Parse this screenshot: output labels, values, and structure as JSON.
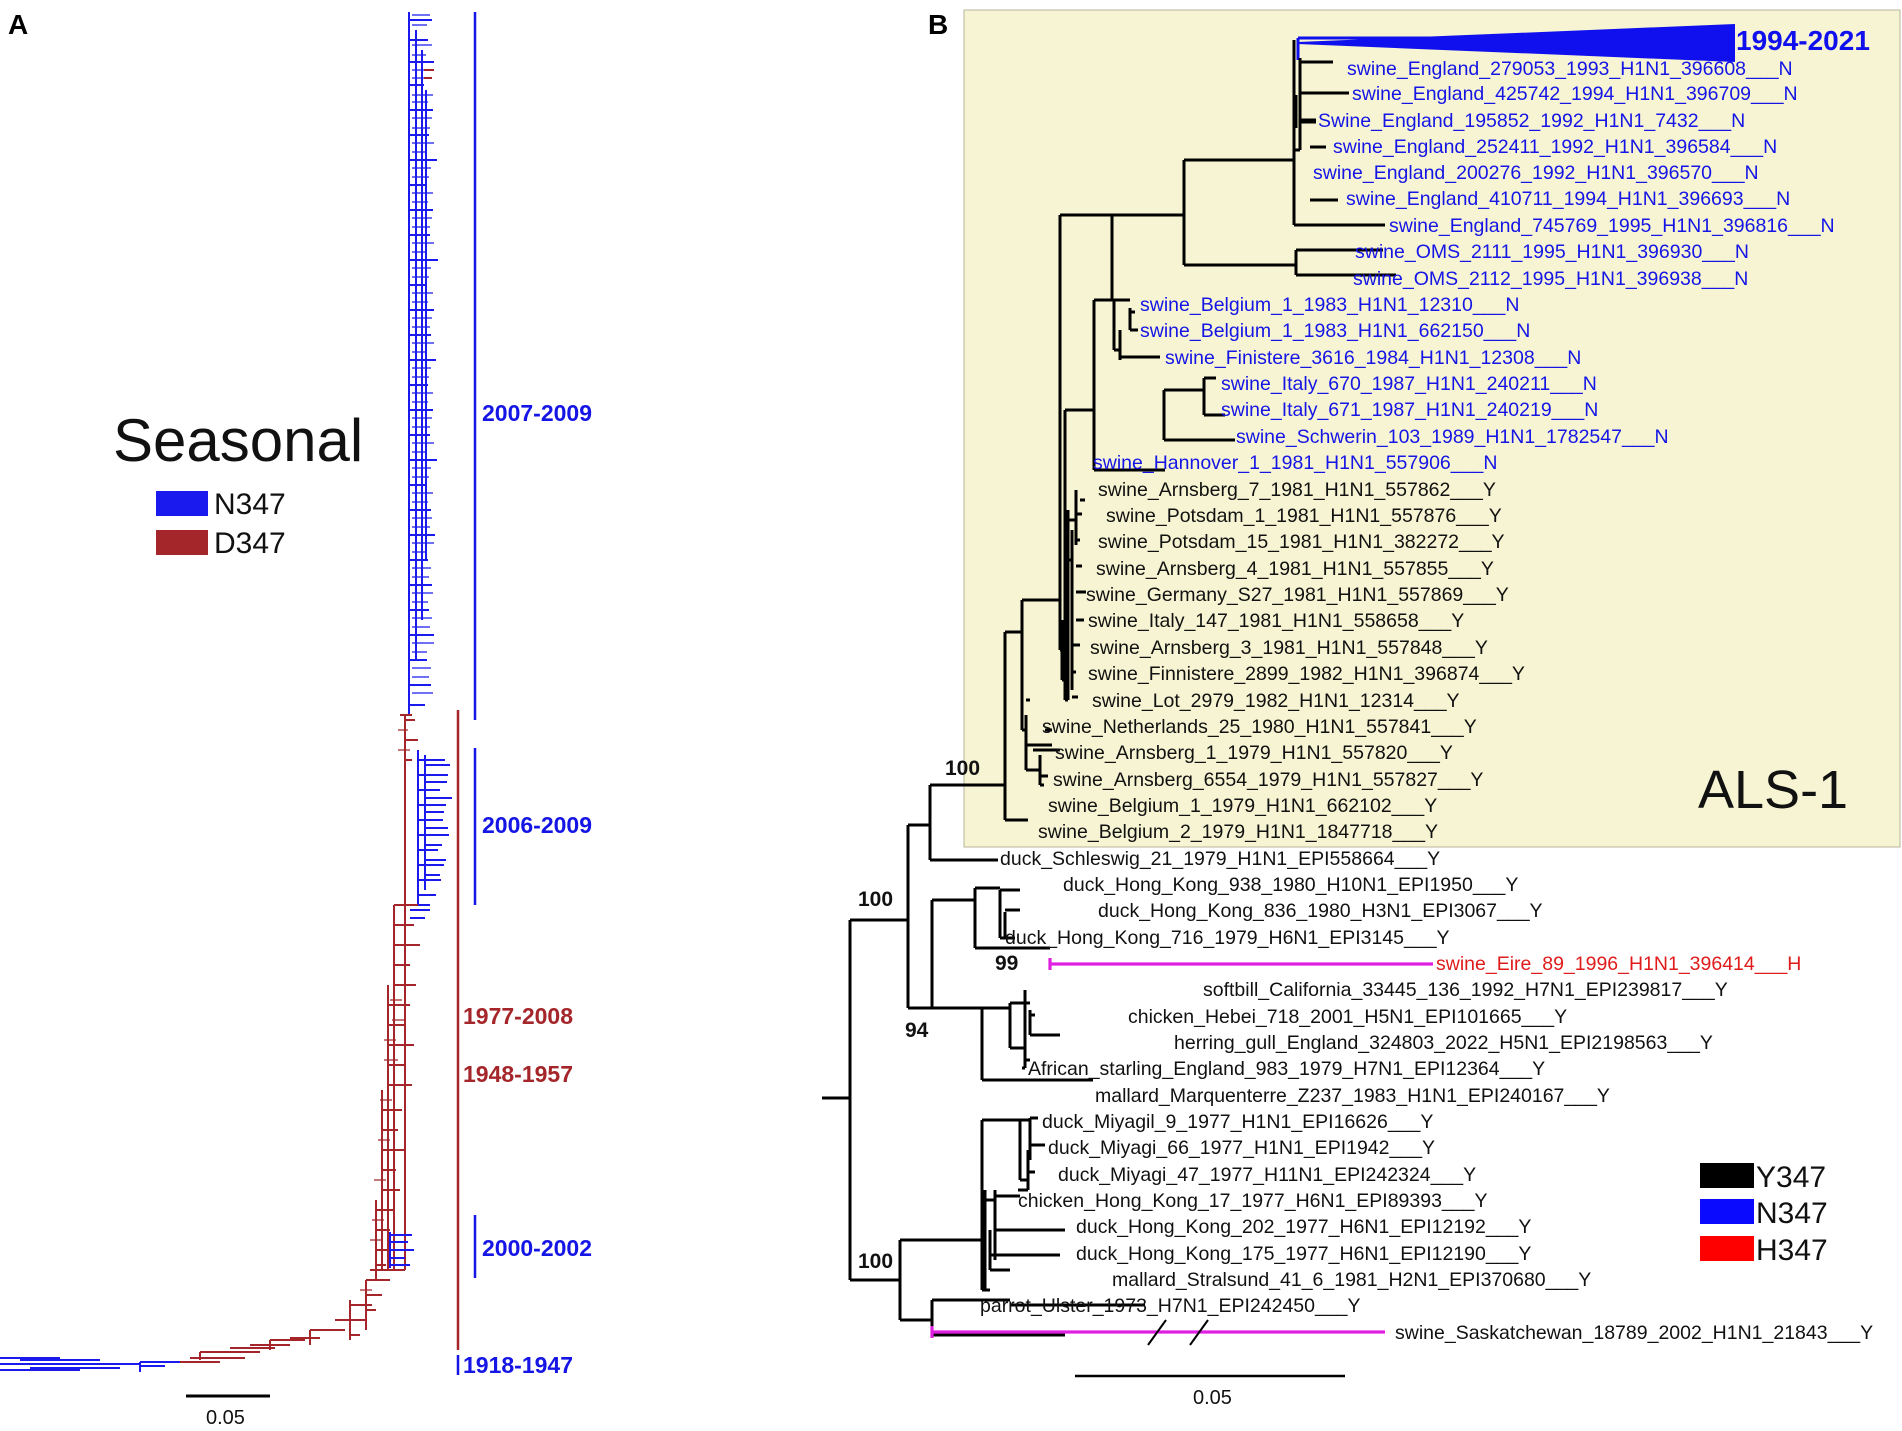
{
  "panelA": {
    "label": "A",
    "title": "Seasonal",
    "legend": [
      {
        "name": "N347",
        "color": "#1a1aee"
      },
      {
        "name": "D347",
        "color": "#a5262a"
      }
    ],
    "clades": [
      {
        "label": "2007-2009",
        "color": "#1515e6"
      },
      {
        "label": "2006-2009",
        "color": "#1515e6"
      },
      {
        "label": "1977-2008",
        "color": "#a5262a"
      },
      {
        "label": "1948-1957",
        "color": "#a5262a"
      },
      {
        "label": "2000-2002",
        "color": "#1515e6"
      },
      {
        "label": "1918-1947",
        "color": "#1515e6"
      }
    ],
    "scale_label": "0.05"
  },
  "panelB": {
    "label": "B",
    "collapsed_clade": "1994-2021",
    "box_label": "ALS-1",
    "bootstraps": [
      "100",
      "100",
      "99",
      "94",
      "100"
    ],
    "scale_label": "0.05",
    "legend": [
      {
        "name": "Y347",
        "color": "#000000"
      },
      {
        "name": "N347",
        "color": "#0a0aff"
      },
      {
        "name": "H347",
        "color": "#ff0000"
      }
    ],
    "leaves": [
      "swine_England_279053_1993_H1N1_396608___N",
      "swine_England_425742_1994_H1N1_396709___N",
      "Swine_England_195852_1992_H1N1_7432___N",
      "swine_England_252411_1992_H1N1_396584___N",
      "swine_England_200276_1992_H1N1_396570___N",
      "swine_England_410711_1994_H1N1_396693___N",
      "swine_England_745769_1995_H1N1_396816___N",
      "swine_OMS_2111_1995_H1N1_396930___N",
      "swine_OMS_2112_1995_H1N1_396938___N",
      "swine_Belgium_1_1983_H1N1_12310___N",
      "swine_Belgium_1_1983_H1N1_662150___N",
      "swine_Finistere_3616_1984_H1N1_12308___N",
      "swine_Italy_670_1987_H1N1_240211___N",
      "swine_Italy_671_1987_H1N1_240219___N",
      "swine_Schwerin_103_1989_H1N1_1782547___N",
      "swine_Hannover_1_1981_H1N1_557906___N",
      "swine_Arnsberg_7_1981_H1N1_557862___Y",
      "swine_Potsdam_1_1981_H1N1_557876___Y",
      "swine_Potsdam_15_1981_H1N1_382272___Y",
      "swine_Arnsberg_4_1981_H1N1_557855___Y",
      "swine_Germany_S27_1981_H1N1_557869___Y",
      "swine_Italy_147_1981_H1N1_558658___Y",
      "swine_Arnsberg_3_1981_H1N1_557848___Y",
      "swine_Finnistere_2899_1982_H1N1_396874___Y",
      "swine_Lot_2979_1982_H1N1_12314___Y",
      "swine_Netherlands_25_1980_H1N1_557841___Y",
      "swine_Arnsberg_1_1979_H1N1_557820___Y",
      "swine_Arnsberg_6554_1979_H1N1_557827___Y",
      "swine_Belgium_1_1979_H1N1_662102___Y",
      "swine_Belgium_2_1979_H1N1_1847718___Y",
      "duck_Schleswig_21_1979_H1N1_EPI558664___Y",
      "duck_Hong_Kong_938_1980_H10N1_EPI1950___Y",
      "duck_Hong_Kong_836_1980_H3N1_EPI3067___Y",
      "duck_Hong_Kong_716_1979_H6N1_EPI3145___Y",
      "swine_Eire_89_1996_H1N1_396414___H",
      "softbill_California_33445_136_1992_H7N1_EPI239817___Y",
      "chicken_Hebei_718_2001_H5N1_EPI101665___Y",
      "herring_gull_England_324803_2022_H5N1_EPI2198563___Y",
      "African_starling_England_983_1979_H7N1_EPI12364___Y",
      "mallard_Marquenterre_Z237_1983_H1N1_EPI240167___Y",
      "duck_Miyagil_9_1977_H1N1_EPI16626___Y",
      "duck_Miyagi_66_1977_H1N1_EPI1942___Y",
      "duck_Miyagi_47_1977_H11N1_EPI242324___Y",
      "chicken_Hong_Kong_17_1977_H6N1_EPI89393___Y",
      "duck_Hong_Kong_202_1977_H6N1_EPI12192___Y",
      "duck_Hong_Kong_175_1977_H6N1_EPI12190___Y",
      "mallard_Stralsund_41_6_1981_H2N1_EPI370680___Y",
      "parrot_Ulster_1973_H7N1_EPI242450___Y",
      "swine_Saskatchewan_18789_2002_H1N1_21843___Y"
    ]
  }
}
